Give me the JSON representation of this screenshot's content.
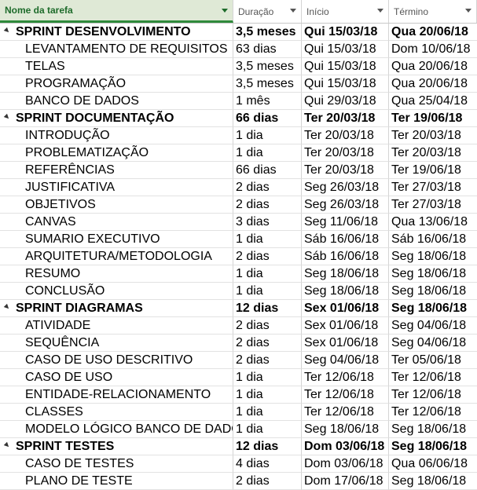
{
  "header": {
    "name": "Nome da tarefa",
    "duration": "Duração",
    "start": "Início",
    "finish": "Término"
  },
  "rows": [
    {
      "type": "summary",
      "name": "SPRINT DESENVOLVIMENTO",
      "duration": "3,5 meses",
      "start": "Qui 15/03/18",
      "finish": "Qua 20/06/18"
    },
    {
      "type": "task",
      "name": "LEVANTAMENTO DE REQUISITOS",
      "duration": "63 dias",
      "start": "Qui 15/03/18",
      "finish": "Dom 10/06/18"
    },
    {
      "type": "task",
      "name": "TELAS",
      "duration": "3,5 meses",
      "start": "Qui 15/03/18",
      "finish": "Qua 20/06/18"
    },
    {
      "type": "task",
      "name": "PROGRAMAÇÃO",
      "duration": "3,5 meses",
      "start": "Qui 15/03/18",
      "finish": "Qua 20/06/18"
    },
    {
      "type": "task",
      "name": "BANCO DE DADOS",
      "duration": "1 mês",
      "start": "Qui 29/03/18",
      "finish": "Qua 25/04/18"
    },
    {
      "type": "summary",
      "name": "SPRINT DOCUMENTAÇÃO",
      "duration": "66 dias",
      "start": "Ter 20/03/18",
      "finish": "Ter 19/06/18"
    },
    {
      "type": "task",
      "name": "INTRODUÇÃO",
      "duration": "1 dia",
      "start": "Ter 20/03/18",
      "finish": "Ter 20/03/18"
    },
    {
      "type": "task",
      "name": "PROBLEMATIZAÇÃO",
      "duration": "1 dia",
      "start": "Ter 20/03/18",
      "finish": "Ter 20/03/18"
    },
    {
      "type": "task",
      "name": "REFERÊNCIAS",
      "duration": "66 dias",
      "start": "Ter 20/03/18",
      "finish": "Ter 19/06/18"
    },
    {
      "type": "task",
      "name": "JUSTIFICATIVA",
      "duration": "2 dias",
      "start": "Seg 26/03/18",
      "finish": "Ter 27/03/18"
    },
    {
      "type": "task",
      "name": "OBJETIVOS",
      "duration": "2 dias",
      "start": "Seg 26/03/18",
      "finish": "Ter 27/03/18"
    },
    {
      "type": "task",
      "name": "CANVAS",
      "duration": "3 dias",
      "start": "Seg 11/06/18",
      "finish": "Qua 13/06/18"
    },
    {
      "type": "task",
      "name": "SUMARIO EXECUTIVO",
      "duration": "1 dia",
      "start": "Sáb 16/06/18",
      "finish": "Sáb 16/06/18"
    },
    {
      "type": "task",
      "name": "ARQUITETURA/METODOLOGIA",
      "duration": "2 dias",
      "start": "Sáb 16/06/18",
      "finish": "Seg 18/06/18"
    },
    {
      "type": "task",
      "name": "RESUMO",
      "duration": "1 dia",
      "start": "Seg 18/06/18",
      "finish": "Seg 18/06/18"
    },
    {
      "type": "task",
      "name": "CONCLUSÃO",
      "duration": "1 dia",
      "start": "Seg 18/06/18",
      "finish": "Seg 18/06/18"
    },
    {
      "type": "summary",
      "name": "SPRINT DIAGRAMAS",
      "duration": "12 dias",
      "start": "Sex 01/06/18",
      "finish": "Seg 18/06/18"
    },
    {
      "type": "task",
      "name": "ATIVIDADE",
      "duration": "2 dias",
      "start": "Sex 01/06/18",
      "finish": "Seg 04/06/18"
    },
    {
      "type": "task",
      "name": "SEQUÊNCIA",
      "duration": "2 dias",
      "start": "Sex 01/06/18",
      "finish": "Seg 04/06/18"
    },
    {
      "type": "task",
      "name": "CASO DE USO DESCRITIVO",
      "duration": "2 dias",
      "start": "Seg 04/06/18",
      "finish": "Ter 05/06/18"
    },
    {
      "type": "task",
      "name": "CASO DE USO",
      "duration": "1 dia",
      "start": "Ter 12/06/18",
      "finish": "Ter 12/06/18"
    },
    {
      "type": "task",
      "name": "ENTIDADE-RELACIONAMENTO",
      "duration": "1 dia",
      "start": "Ter 12/06/18",
      "finish": "Ter 12/06/18"
    },
    {
      "type": "task",
      "name": "CLASSES",
      "duration": "1 dia",
      "start": "Ter 12/06/18",
      "finish": "Ter 12/06/18"
    },
    {
      "type": "task",
      "name": "MODELO LÓGICO BANCO DE DADOS",
      "duration": "1 dia",
      "start": "Seg 18/06/18",
      "finish": "Seg 18/06/18"
    },
    {
      "type": "summary",
      "name": "SPRINT TESTES",
      "duration": "12 dias",
      "start": "Dom 03/06/18",
      "finish": "Seg 18/06/18"
    },
    {
      "type": "task",
      "name": "CASO DE TESTES",
      "duration": "4 dias",
      "start": "Dom 03/06/18",
      "finish": "Qua 06/06/18"
    },
    {
      "type": "task",
      "name": "PLANO DE TESTE",
      "duration": "2 dias",
      "start": "Dom 17/06/18",
      "finish": "Seg 18/06/18"
    }
  ]
}
